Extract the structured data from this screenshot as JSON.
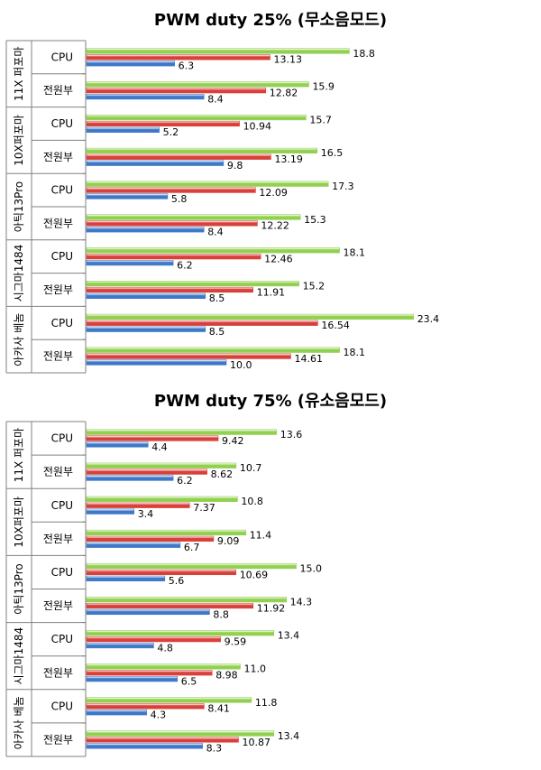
{
  "colors": {
    "green": "#92d050",
    "red": "#d9403a",
    "blue": "#3f78c8"
  },
  "chart_data": [
    {
      "type": "bar",
      "orientation": "horizontal",
      "title": "PWM duty 25% (무소음모드)",
      "groups": [
        {
          "name": "11X 퍼포마",
          "rows": [
            {
              "label": "CPU",
              "values": [
                18.8,
                13.13,
                6.3
              ],
              "labels": [
                "18.8",
                "13.13",
                "6.3"
              ]
            },
            {
              "label": "전원부",
              "values": [
                15.9,
                12.82,
                8.4
              ],
              "labels": [
                "15.9",
                "12.82",
                "8.4"
              ]
            }
          ]
        },
        {
          "name": "10X퍼포마",
          "rows": [
            {
              "label": "CPU",
              "values": [
                15.7,
                10.94,
                5.2
              ],
              "labels": [
                "15.7",
                "10.94",
                "5.2"
              ]
            },
            {
              "label": "전원부",
              "values": [
                16.5,
                13.19,
                9.8
              ],
              "labels": [
                "16.5",
                "13.19",
                "9.8"
              ]
            }
          ]
        },
        {
          "name": "아틱13Pro",
          "rows": [
            {
              "label": "CPU",
              "values": [
                17.3,
                12.09,
                5.8
              ],
              "labels": [
                "17.3",
                "12.09",
                "5.8"
              ]
            },
            {
              "label": "전원부",
              "values": [
                15.3,
                12.22,
                8.4
              ],
              "labels": [
                "15.3",
                "12.22",
                "8.4"
              ]
            }
          ]
        },
        {
          "name": "시그마1484",
          "rows": [
            {
              "label": "CPU",
              "values": [
                18.1,
                12.46,
                6.2
              ],
              "labels": [
                "18.1",
                "12.46",
                "6.2"
              ]
            },
            {
              "label": "전원부",
              "values": [
                15.2,
                11.91,
                8.5
              ],
              "labels": [
                "15.2",
                "11.91",
                "8.5"
              ]
            }
          ]
        },
        {
          "name": "아카사 베놈",
          "rows": [
            {
              "label": "CPU",
              "values": [
                23.4,
                16.54,
                8.5
              ],
              "labels": [
                "23.4",
                "16.54",
                "8.5"
              ]
            },
            {
              "label": "전원부",
              "values": [
                18.1,
                14.61,
                10.0
              ],
              "labels": [
                "18.1",
                "14.61",
                "10.0"
              ]
            }
          ]
        }
      ]
    },
    {
      "type": "bar",
      "orientation": "horizontal",
      "title": "PWM duty 75% (유소음모드)",
      "groups": [
        {
          "name": "11X 퍼포마",
          "rows": [
            {
              "label": "CPU",
              "values": [
                13.6,
                9.42,
                4.4
              ],
              "labels": [
                "13.6",
                "9.42",
                "4.4"
              ]
            },
            {
              "label": "전원부",
              "values": [
                10.7,
                8.62,
                6.2
              ],
              "labels": [
                "10.7",
                "8.62",
                "6.2"
              ]
            }
          ]
        },
        {
          "name": "10X퍼포마",
          "rows": [
            {
              "label": "CPU",
              "values": [
                10.8,
                7.37,
                3.4
              ],
              "labels": [
                "10.8",
                "7.37",
                "3.4"
              ]
            },
            {
              "label": "전원부",
              "values": [
                11.4,
                9.09,
                6.7
              ],
              "labels": [
                "11.4",
                "9.09",
                "6.7"
              ]
            }
          ]
        },
        {
          "name": "아틱13Pro",
          "rows": [
            {
              "label": "CPU",
              "values": [
                15.0,
                10.69,
                5.6
              ],
              "labels": [
                "15.0",
                "10.69",
                "5.6"
              ]
            },
            {
              "label": "전원부",
              "values": [
                14.3,
                11.92,
                8.8
              ],
              "labels": [
                "14.3",
                "11.92",
                "8.8"
              ]
            }
          ]
        },
        {
          "name": "시그마1484",
          "rows": [
            {
              "label": "CPU",
              "values": [
                13.4,
                9.59,
                4.8
              ],
              "labels": [
                "13.4",
                "9.59",
                "4.8"
              ]
            },
            {
              "label": "전원부",
              "values": [
                11.0,
                8.98,
                6.5
              ],
              "labels": [
                "11.0",
                "8.98",
                "6.5"
              ]
            }
          ]
        },
        {
          "name": "아카사 베놈",
          "rows": [
            {
              "label": "CPU",
              "values": [
                11.8,
                8.41,
                4.3
              ],
              "labels": [
                "11.8",
                "8.41",
                "4.3"
              ]
            },
            {
              "label": "전원부",
              "values": [
                13.4,
                10.87,
                8.3
              ],
              "labels": [
                "13.4",
                "10.87",
                "8.3"
              ]
            }
          ]
        }
      ]
    }
  ]
}
